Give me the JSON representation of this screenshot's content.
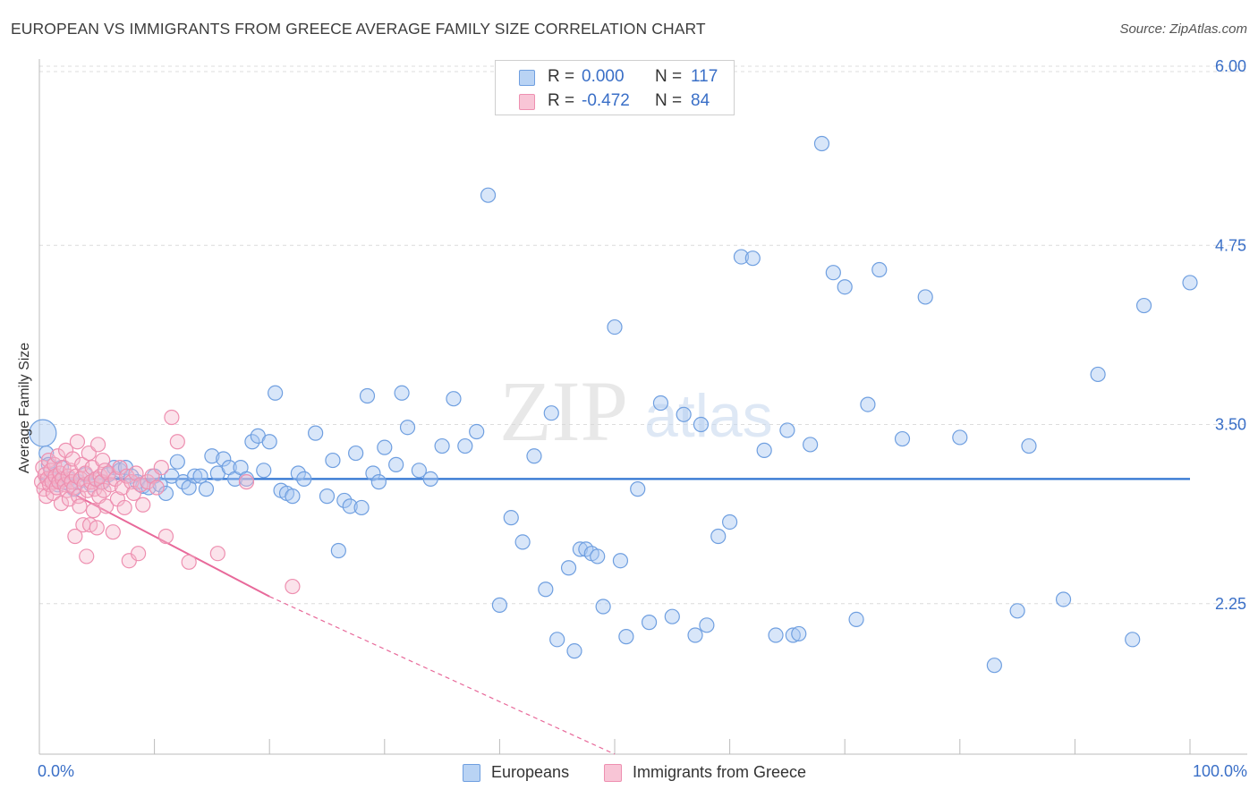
{
  "title": "EUROPEAN VS IMMIGRANTS FROM GREECE AVERAGE FAMILY SIZE CORRELATION CHART",
  "source": "Source: ZipAtlas.com",
  "watermark": {
    "zip": "ZIP",
    "atlas": "atlas"
  },
  "colors": {
    "blue": "#6f9fe0",
    "blue_fill": "#a9c8f1",
    "blue_line": "#2f73d1",
    "pink": "#ee8fb0",
    "pink_fill": "#f5b8cd",
    "pink_line": "#e8699a",
    "grid": "#dcdcdc",
    "axis_text": "#3a6fc7"
  },
  "legend_stats": [
    {
      "series": "Europeans",
      "r_label": "R =",
      "r_value": "0.000",
      "n_label": "N =",
      "n_value": "117"
    },
    {
      "series": "Immigrants from Greece",
      "r_label": "R =",
      "r_value": "-0.472",
      "n_label": "N =",
      "n_value": "84"
    }
  ],
  "bottom_legend": [
    "Europeans",
    "Immigrants from Greece"
  ],
  "chart_data": {
    "type": "scatter",
    "title": "EUROPEAN VS IMMIGRANTS FROM GREECE AVERAGE FAMILY SIZE CORRELATION CHART",
    "xlabel": "",
    "ylabel": "Average Family Size",
    "xlim": [
      0,
      100
    ],
    "ylim": [
      1.2,
      6.05
    ],
    "x_tick_labels": [
      "0.0%",
      "100.0%"
    ],
    "y_ticks": [
      2.25,
      3.5,
      4.75,
      6.0
    ],
    "y_tick_labels": [
      "2.25",
      "3.50",
      "4.75",
      "6.00"
    ],
    "grid": true,
    "legend_position": "top-center",
    "series": [
      {
        "name": "Europeans",
        "r": 0.0,
        "n": 117,
        "trend": {
          "x": [
            0,
            100
          ],
          "y": [
            3.12,
            3.12
          ]
        },
        "points": [
          [
            0.3,
            3.44
          ],
          [
            0.6,
            3.3
          ],
          [
            0.8,
            3.22
          ],
          [
            1,
            3.12
          ],
          [
            1.3,
            3.15
          ],
          [
            1.6,
            3.08
          ],
          [
            1.9,
            3.2
          ],
          [
            2.2,
            3.1
          ],
          [
            2.6,
            3.12
          ],
          [
            3,
            3.05
          ],
          [
            3.4,
            3.1
          ],
          [
            4,
            3.15
          ],
          [
            4.5,
            3.08
          ],
          [
            5,
            3.12
          ],
          [
            5.5,
            3.1
          ],
          [
            6,
            3.15
          ],
          [
            6.5,
            3.2
          ],
          [
            7,
            3.18
          ],
          [
            7.5,
            3.2
          ],
          [
            8,
            3.14
          ],
          [
            8.5,
            3.1
          ],
          [
            9,
            3.07
          ],
          [
            9.5,
            3.06
          ],
          [
            10,
            3.14
          ],
          [
            10.5,
            3.08
          ],
          [
            11,
            3.02
          ],
          [
            11.5,
            3.14
          ],
          [
            12,
            3.24
          ],
          [
            12.5,
            3.1
          ],
          [
            13,
            3.06
          ],
          [
            13.5,
            3.14
          ],
          [
            14,
            3.14
          ],
          [
            14.5,
            3.05
          ],
          [
            15,
            3.28
          ],
          [
            15.5,
            3.16
          ],
          [
            16,
            3.26
          ],
          [
            16.5,
            3.2
          ],
          [
            17,
            3.12
          ],
          [
            17.5,
            3.2
          ],
          [
            18,
            3.12
          ],
          [
            18.5,
            3.38
          ],
          [
            19,
            3.42
          ],
          [
            19.5,
            3.18
          ],
          [
            20,
            3.38
          ],
          [
            20.5,
            3.72
          ],
          [
            21,
            3.04
          ],
          [
            21.5,
            3.02
          ],
          [
            22,
            3.0
          ],
          [
            22.5,
            3.16
          ],
          [
            23,
            3.12
          ],
          [
            24,
            3.44
          ],
          [
            25,
            3.0
          ],
          [
            25.5,
            3.25
          ],
          [
            26,
            2.62
          ],
          [
            26.5,
            2.97
          ],
          [
            27,
            2.93
          ],
          [
            27.5,
            3.3
          ],
          [
            28,
            2.92
          ],
          [
            28.5,
            3.7
          ],
          [
            29,
            3.16
          ],
          [
            29.5,
            3.1
          ],
          [
            30,
            3.34
          ],
          [
            31,
            3.22
          ],
          [
            31.5,
            3.72
          ],
          [
            32,
            3.48
          ],
          [
            33,
            3.18
          ],
          [
            34,
            3.12
          ],
          [
            35,
            3.35
          ],
          [
            36,
            3.68
          ],
          [
            37,
            3.35
          ],
          [
            38,
            3.45
          ],
          [
            39,
            5.1
          ],
          [
            40,
            2.24
          ],
          [
            41,
            2.85
          ],
          [
            42,
            2.68
          ],
          [
            43,
            3.28
          ],
          [
            44,
            2.35
          ],
          [
            44.5,
            3.58
          ],
          [
            45,
            2.0
          ],
          [
            46,
            2.5
          ],
          [
            46.5,
            1.92
          ],
          [
            47,
            2.63
          ],
          [
            47.5,
            2.63
          ],
          [
            48,
            2.6
          ],
          [
            48.5,
            2.58
          ],
          [
            49,
            2.23
          ],
          [
            50,
            4.18
          ],
          [
            50.5,
            2.55
          ],
          [
            51,
            2.02
          ],
          [
            52,
            3.05
          ],
          [
            53,
            2.12
          ],
          [
            54,
            3.65
          ],
          [
            55,
            2.16
          ],
          [
            56,
            3.57
          ],
          [
            57,
            2.03
          ],
          [
            57.5,
            3.5
          ],
          [
            58,
            2.1
          ],
          [
            59,
            2.72
          ],
          [
            60,
            2.82
          ],
          [
            61,
            4.67
          ],
          [
            62,
            4.66
          ],
          [
            63,
            3.32
          ],
          [
            64,
            2.03
          ],
          [
            65,
            3.46
          ],
          [
            65.5,
            2.03
          ],
          [
            66,
            2.04
          ],
          [
            67,
            3.36
          ],
          [
            68,
            5.46
          ],
          [
            69,
            4.56
          ],
          [
            70,
            4.46
          ],
          [
            71,
            2.14
          ],
          [
            72,
            3.64
          ],
          [
            73,
            4.58
          ],
          [
            75,
            3.4
          ],
          [
            77,
            4.39
          ],
          [
            80,
            3.41
          ],
          [
            83,
            1.82
          ],
          [
            85,
            2.2
          ],
          [
            86,
            3.35
          ],
          [
            89,
            2.28
          ],
          [
            92,
            3.85
          ],
          [
            95,
            2.0
          ],
          [
            96,
            4.33
          ],
          [
            100,
            4.49
          ]
        ]
      },
      {
        "name": "Immigrants from Greece",
        "r": -0.472,
        "n": 84,
        "trend_solid": {
          "x": [
            0,
            20
          ],
          "y": [
            3.14,
            2.3
          ]
        },
        "trend_dashed": {
          "x": [
            20,
            50
          ],
          "y": [
            2.3,
            1.2
          ]
        },
        "points": [
          [
            0.2,
            3.1
          ],
          [
            0.3,
            3.2
          ],
          [
            0.4,
            3.05
          ],
          [
            0.5,
            3.15
          ],
          [
            0.6,
            3.0
          ],
          [
            0.7,
            3.12
          ],
          [
            0.8,
            3.25
          ],
          [
            0.9,
            3.08
          ],
          [
            1.0,
            3.18
          ],
          [
            1.1,
            3.1
          ],
          [
            1.2,
            3.02
          ],
          [
            1.3,
            3.22
          ],
          [
            1.4,
            3.14
          ],
          [
            1.5,
            3.06
          ],
          [
            1.6,
            3.28
          ],
          [
            1.7,
            3.1
          ],
          [
            1.8,
            3.16
          ],
          [
            1.9,
            2.95
          ],
          [
            2.0,
            3.12
          ],
          [
            2.1,
            3.2
          ],
          [
            2.2,
            3.08
          ],
          [
            2.3,
            3.32
          ],
          [
            2.4,
            3.04
          ],
          [
            2.5,
            3.14
          ],
          [
            2.6,
            2.98
          ],
          [
            2.7,
            3.18
          ],
          [
            2.8,
            3.1
          ],
          [
            2.9,
            3.26
          ],
          [
            3.0,
            3.06
          ],
          [
            3.1,
            2.72
          ],
          [
            3.2,
            3.14
          ],
          [
            3.3,
            3.38
          ],
          [
            3.4,
            3.0
          ],
          [
            3.5,
            2.93
          ],
          [
            3.6,
            3.12
          ],
          [
            3.7,
            3.22
          ],
          [
            3.8,
            2.8
          ],
          [
            3.9,
            3.08
          ],
          [
            4.0,
            3.16
          ],
          [
            4.1,
            2.58
          ],
          [
            4.2,
            3.04
          ],
          [
            4.3,
            3.3
          ],
          [
            4.4,
            2.8
          ],
          [
            4.5,
            3.1
          ],
          [
            4.6,
            3.2
          ],
          [
            4.7,
            2.9
          ],
          [
            4.8,
            3.05
          ],
          [
            4.9,
            3.12
          ],
          [
            5.0,
            2.78
          ],
          [
            5.1,
            3.36
          ],
          [
            5.2,
            3.0
          ],
          [
            5.3,
            3.14
          ],
          [
            5.4,
            3.1
          ],
          [
            5.5,
            3.25
          ],
          [
            5.6,
            3.04
          ],
          [
            5.7,
            3.18
          ],
          [
            5.8,
            2.93
          ],
          [
            6.0,
            3.16
          ],
          [
            6.2,
            3.08
          ],
          [
            6.4,
            2.75
          ],
          [
            6.6,
            3.12
          ],
          [
            6.8,
            2.98
          ],
          [
            7.0,
            3.2
          ],
          [
            7.2,
            3.06
          ],
          [
            7.4,
            2.92
          ],
          [
            7.6,
            3.14
          ],
          [
            7.8,
            2.55
          ],
          [
            8.0,
            3.1
          ],
          [
            8.2,
            3.02
          ],
          [
            8.4,
            3.16
          ],
          [
            8.6,
            2.6
          ],
          [
            8.8,
            3.08
          ],
          [
            9.0,
            2.94
          ],
          [
            9.4,
            3.1
          ],
          [
            9.8,
            3.14
          ],
          [
            10.2,
            3.06
          ],
          [
            10.6,
            3.2
          ],
          [
            11.0,
            2.72
          ],
          [
            11.5,
            3.55
          ],
          [
            12.0,
            3.38
          ],
          [
            13.0,
            2.54
          ],
          [
            15.5,
            2.6
          ],
          [
            18.0,
            3.1
          ],
          [
            22.0,
            2.37
          ]
        ]
      }
    ]
  }
}
